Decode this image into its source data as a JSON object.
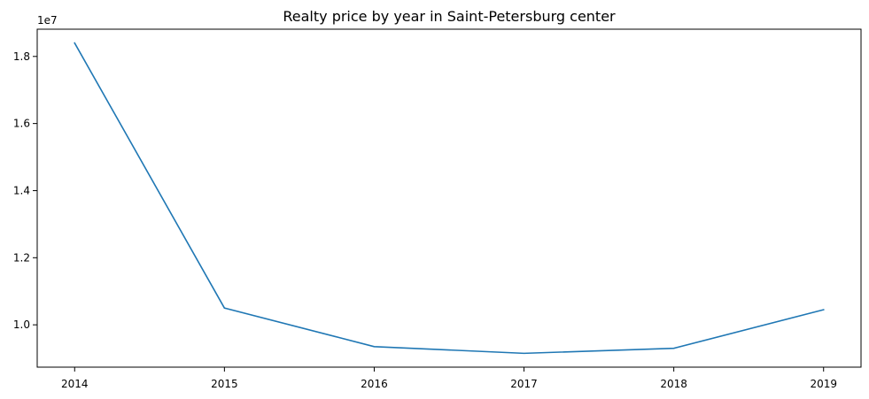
{
  "chart_data": {
    "type": "line",
    "title": "Realty price by year in Saint-Petersburg center",
    "xlabel": "",
    "ylabel": "",
    "x": [
      2014,
      2015,
      2016,
      2017,
      2018,
      2019
    ],
    "series": [
      {
        "values": [
          18400000,
          10500000,
          9350000,
          9150000,
          9300000,
          10450000
        ],
        "color": "#1f77b4"
      }
    ],
    "x_ticks": [
      2014,
      2015,
      2016,
      2017,
      2018,
      2019
    ],
    "x_tick_labels": [
      "2014",
      "2015",
      "2016",
      "2017",
      "2018",
      "2019"
    ],
    "y_ticks": [
      10000000,
      12000000,
      14000000,
      16000000,
      18000000
    ],
    "y_tick_labels": [
      "1.0",
      "1.2",
      "1.4",
      "1.6",
      "1.8"
    ],
    "y_offset_label": "1e7",
    "xlim": [
      2013.75,
      2019.25
    ],
    "ylim": [
      8738000,
      18812000
    ],
    "grid": false,
    "legend": "none"
  }
}
